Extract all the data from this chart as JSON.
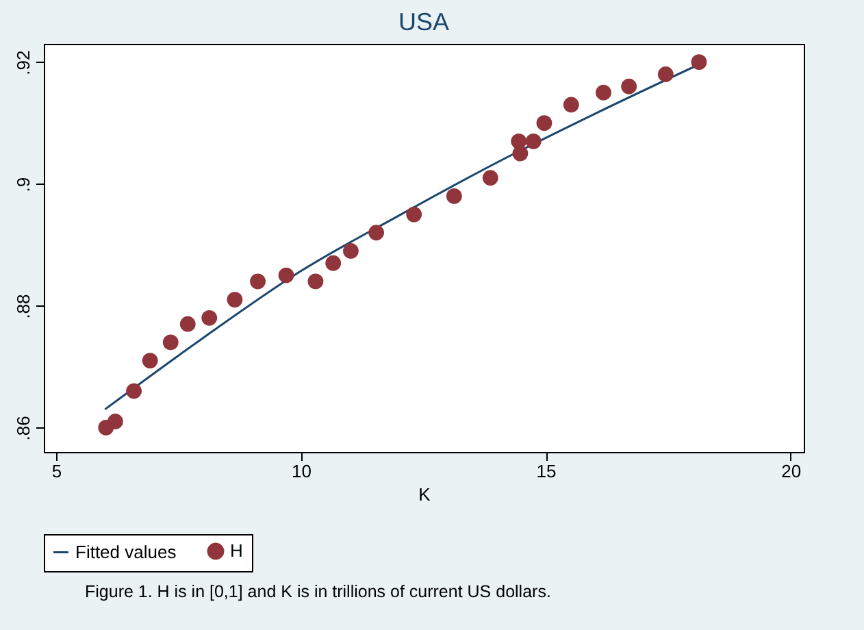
{
  "chart_data": {
    "type": "scatter",
    "title": "USA",
    "xlabel": "K",
    "xlim": [
      4.75,
      20.27
    ],
    "ylim": [
      0.856,
      0.923
    ],
    "xticks": [
      5,
      10,
      15,
      20
    ],
    "yticks": [
      {
        "value": 0.86,
        "label": ".86"
      },
      {
        "value": 0.88,
        "label": ".88"
      },
      {
        "value": 0.9,
        "label": ".9"
      },
      {
        "value": 0.92,
        "label": ".92"
      }
    ],
    "legend": "bottom",
    "series": [
      {
        "name": "Fitted values",
        "type": "line",
        "color": "#1a476f",
        "x": [
          6.0,
          8.0,
          10.0,
          12.0,
          14.0,
          16.0,
          18.1
        ],
        "values": [
          0.863,
          0.8747,
          0.8857,
          0.8948,
          0.9035,
          0.9115,
          0.9195
        ]
      },
      {
        "name": "H",
        "marker": "circle",
        "color": "#90353b",
        "x": [
          6.02,
          6.21,
          6.59,
          6.92,
          7.34,
          7.69,
          8.13,
          8.65,
          9.12,
          9.7,
          10.3,
          10.66,
          11.02,
          11.54,
          12.31,
          13.13,
          13.87,
          14.45,
          14.48,
          14.75,
          14.97,
          15.52,
          16.18,
          16.7,
          17.45,
          18.13
        ],
        "values": [
          0.86,
          0.861,
          0.866,
          0.871,
          0.874,
          0.877,
          0.878,
          0.881,
          0.884,
          0.885,
          0.884,
          0.887,
          0.889,
          0.892,
          0.895,
          0.898,
          0.901,
          0.907,
          0.905,
          0.907,
          0.91,
          0.913,
          0.915,
          0.916,
          0.918,
          0.92
        ]
      }
    ],
    "annotations": [
      "Figure 1.  H is in [0,1] and K is in trillions of current US dollars."
    ]
  }
}
